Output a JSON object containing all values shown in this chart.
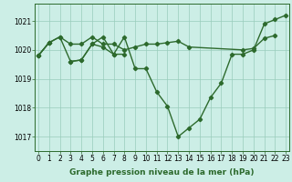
{
  "line1": [
    1019.8,
    1020.25,
    1020.45,
    1019.6,
    1019.65,
    1020.2,
    1020.45,
    1019.85,
    1020.45,
    1019.35,
    1019.35,
    1018.55,
    1018.05,
    1017.0,
    1017.3,
    1017.6,
    1018.35,
    1018.85,
    1019.85,
    1019.85,
    1020.0,
    1020.9,
    1021.05,
    1021.2
  ],
  "line2_x": [
    0,
    1,
    2,
    3,
    4,
    5,
    6,
    7,
    8,
    9,
    10,
    11,
    12,
    13,
    14,
    19,
    20,
    21,
    22
  ],
  "line2_y": [
    1019.8,
    1020.25,
    1020.45,
    1020.2,
    1020.2,
    1020.45,
    1020.2,
    1020.2,
    1020.0,
    1020.1,
    1020.2,
    1020.2,
    1020.25,
    1020.3,
    1020.1,
    1020.0,
    1020.05,
    1020.4,
    1020.5
  ],
  "line3_segments": [
    {
      "x": [
        0,
        1
      ],
      "y": [
        1019.8,
        1020.25
      ]
    },
    {
      "x": [
        3,
        4,
        5,
        6,
        7,
        8
      ],
      "y": [
        1019.6,
        1019.65,
        1020.2,
        1020.1,
        1019.85,
        1019.85
      ]
    }
  ],
  "x": [
    0,
    1,
    2,
    3,
    4,
    5,
    6,
    7,
    8,
    9,
    10,
    11,
    12,
    13,
    14,
    15,
    16,
    17,
    18,
    19,
    20,
    21,
    22,
    23
  ],
  "xtick_labels": [
    "0",
    "1",
    "2",
    "3",
    "4",
    "5",
    "6",
    "7",
    "8",
    "9",
    "10",
    "11",
    "12",
    "13",
    "14",
    "15",
    "16",
    "17",
    "18",
    "19",
    "20",
    "21",
    "22",
    "23"
  ],
  "yticks": [
    1017,
    1018,
    1019,
    1020,
    1021
  ],
  "ylim": [
    1016.5,
    1021.6
  ],
  "xlim": [
    -0.3,
    23.3
  ],
  "line_color": "#2d6a2d",
  "bg_color": "#cceee6",
  "grid_color": "#99ccbb",
  "marker": "D",
  "marker_size": 2.2,
  "line_width": 1.0,
  "xlabel": "Graphe pression niveau de la mer (hPa)",
  "xlabel_fontsize": 6.5,
  "tick_fontsize": 5.5
}
